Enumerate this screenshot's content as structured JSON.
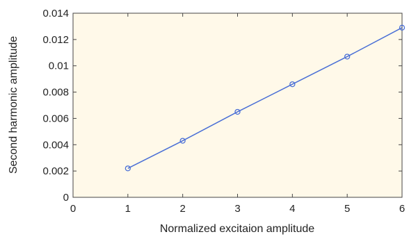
{
  "chart_data": {
    "type": "line",
    "title": "",
    "xlabel": "Normalized excitaion amplitude",
    "ylabel": "Second harmonic amplitude",
    "xlim": [
      0,
      6
    ],
    "ylim": [
      0,
      0.014
    ],
    "x_ticks": [
      "0",
      "1",
      "2",
      "3",
      "4",
      "5",
      "6"
    ],
    "y_ticks": [
      "0",
      "0.002",
      "0.004",
      "0.006",
      "0.008",
      "0.01",
      "0.012",
      "0.014"
    ],
    "grid": false,
    "legend": "none",
    "series": [
      {
        "x": [
          1,
          2,
          3,
          4,
          5,
          6
        ],
        "y": [
          0.0022,
          0.0043,
          0.0065,
          0.0086,
          0.0107,
          0.0129
        ],
        "color": "#4a6fd6",
        "marker": "circle"
      }
    ]
  },
  "colors": {
    "plot_background": "#fff9e9",
    "series_line": "#4a6fd6",
    "axes": "#444444"
  }
}
